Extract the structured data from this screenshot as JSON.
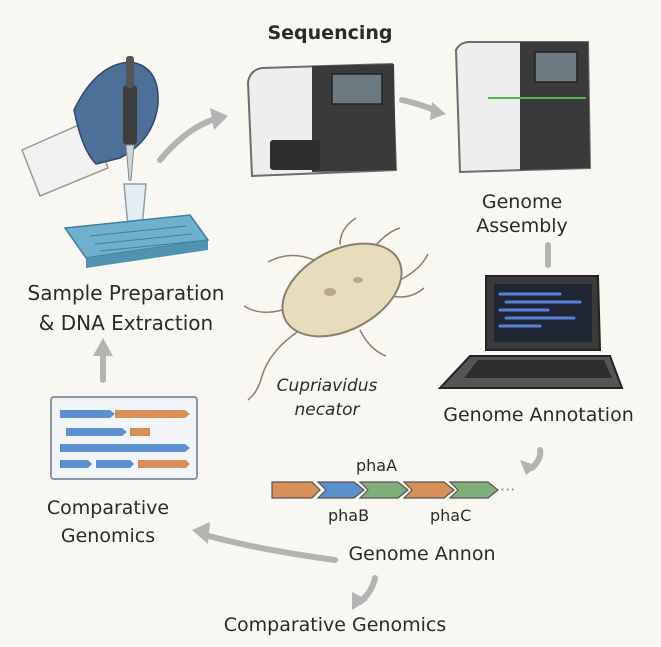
{
  "steps": {
    "sequencing": "Sequencing",
    "assembly_line1": "Genome",
    "assembly_line2": "Assembly",
    "sample_line1": "Sample Preparation",
    "sample_line2": "& DNA Extraction",
    "annotation": "Genome Annotation",
    "comparative_line1": "Comparative",
    "comparative_line2": "Genomics",
    "annon": "Genome Annon",
    "comparative_bottom": "Comparative Genomics"
  },
  "organism": {
    "line1": "Cupriavidus",
    "line2": "necator"
  },
  "genes": {
    "phaA": "phaA",
    "phaB": "phaB",
    "phaC": "phaC",
    "ellipsis": "···"
  },
  "colors": {
    "orange": "#d8905a",
    "blue": "#5b8fce",
    "green": "#7fae79",
    "glove": "#4d6f98",
    "tray": "#6fb0cc",
    "arrow": "#b3b3b3",
    "screen_code": "#5b7fd8"
  },
  "icons": {
    "hand": "gloved-hand-pipette-icon",
    "sequencer": "sequencer-machine-icon",
    "laptop": "laptop-icon",
    "bacterium": "bacterium-icon",
    "alignment": "alignment-window-icon"
  }
}
